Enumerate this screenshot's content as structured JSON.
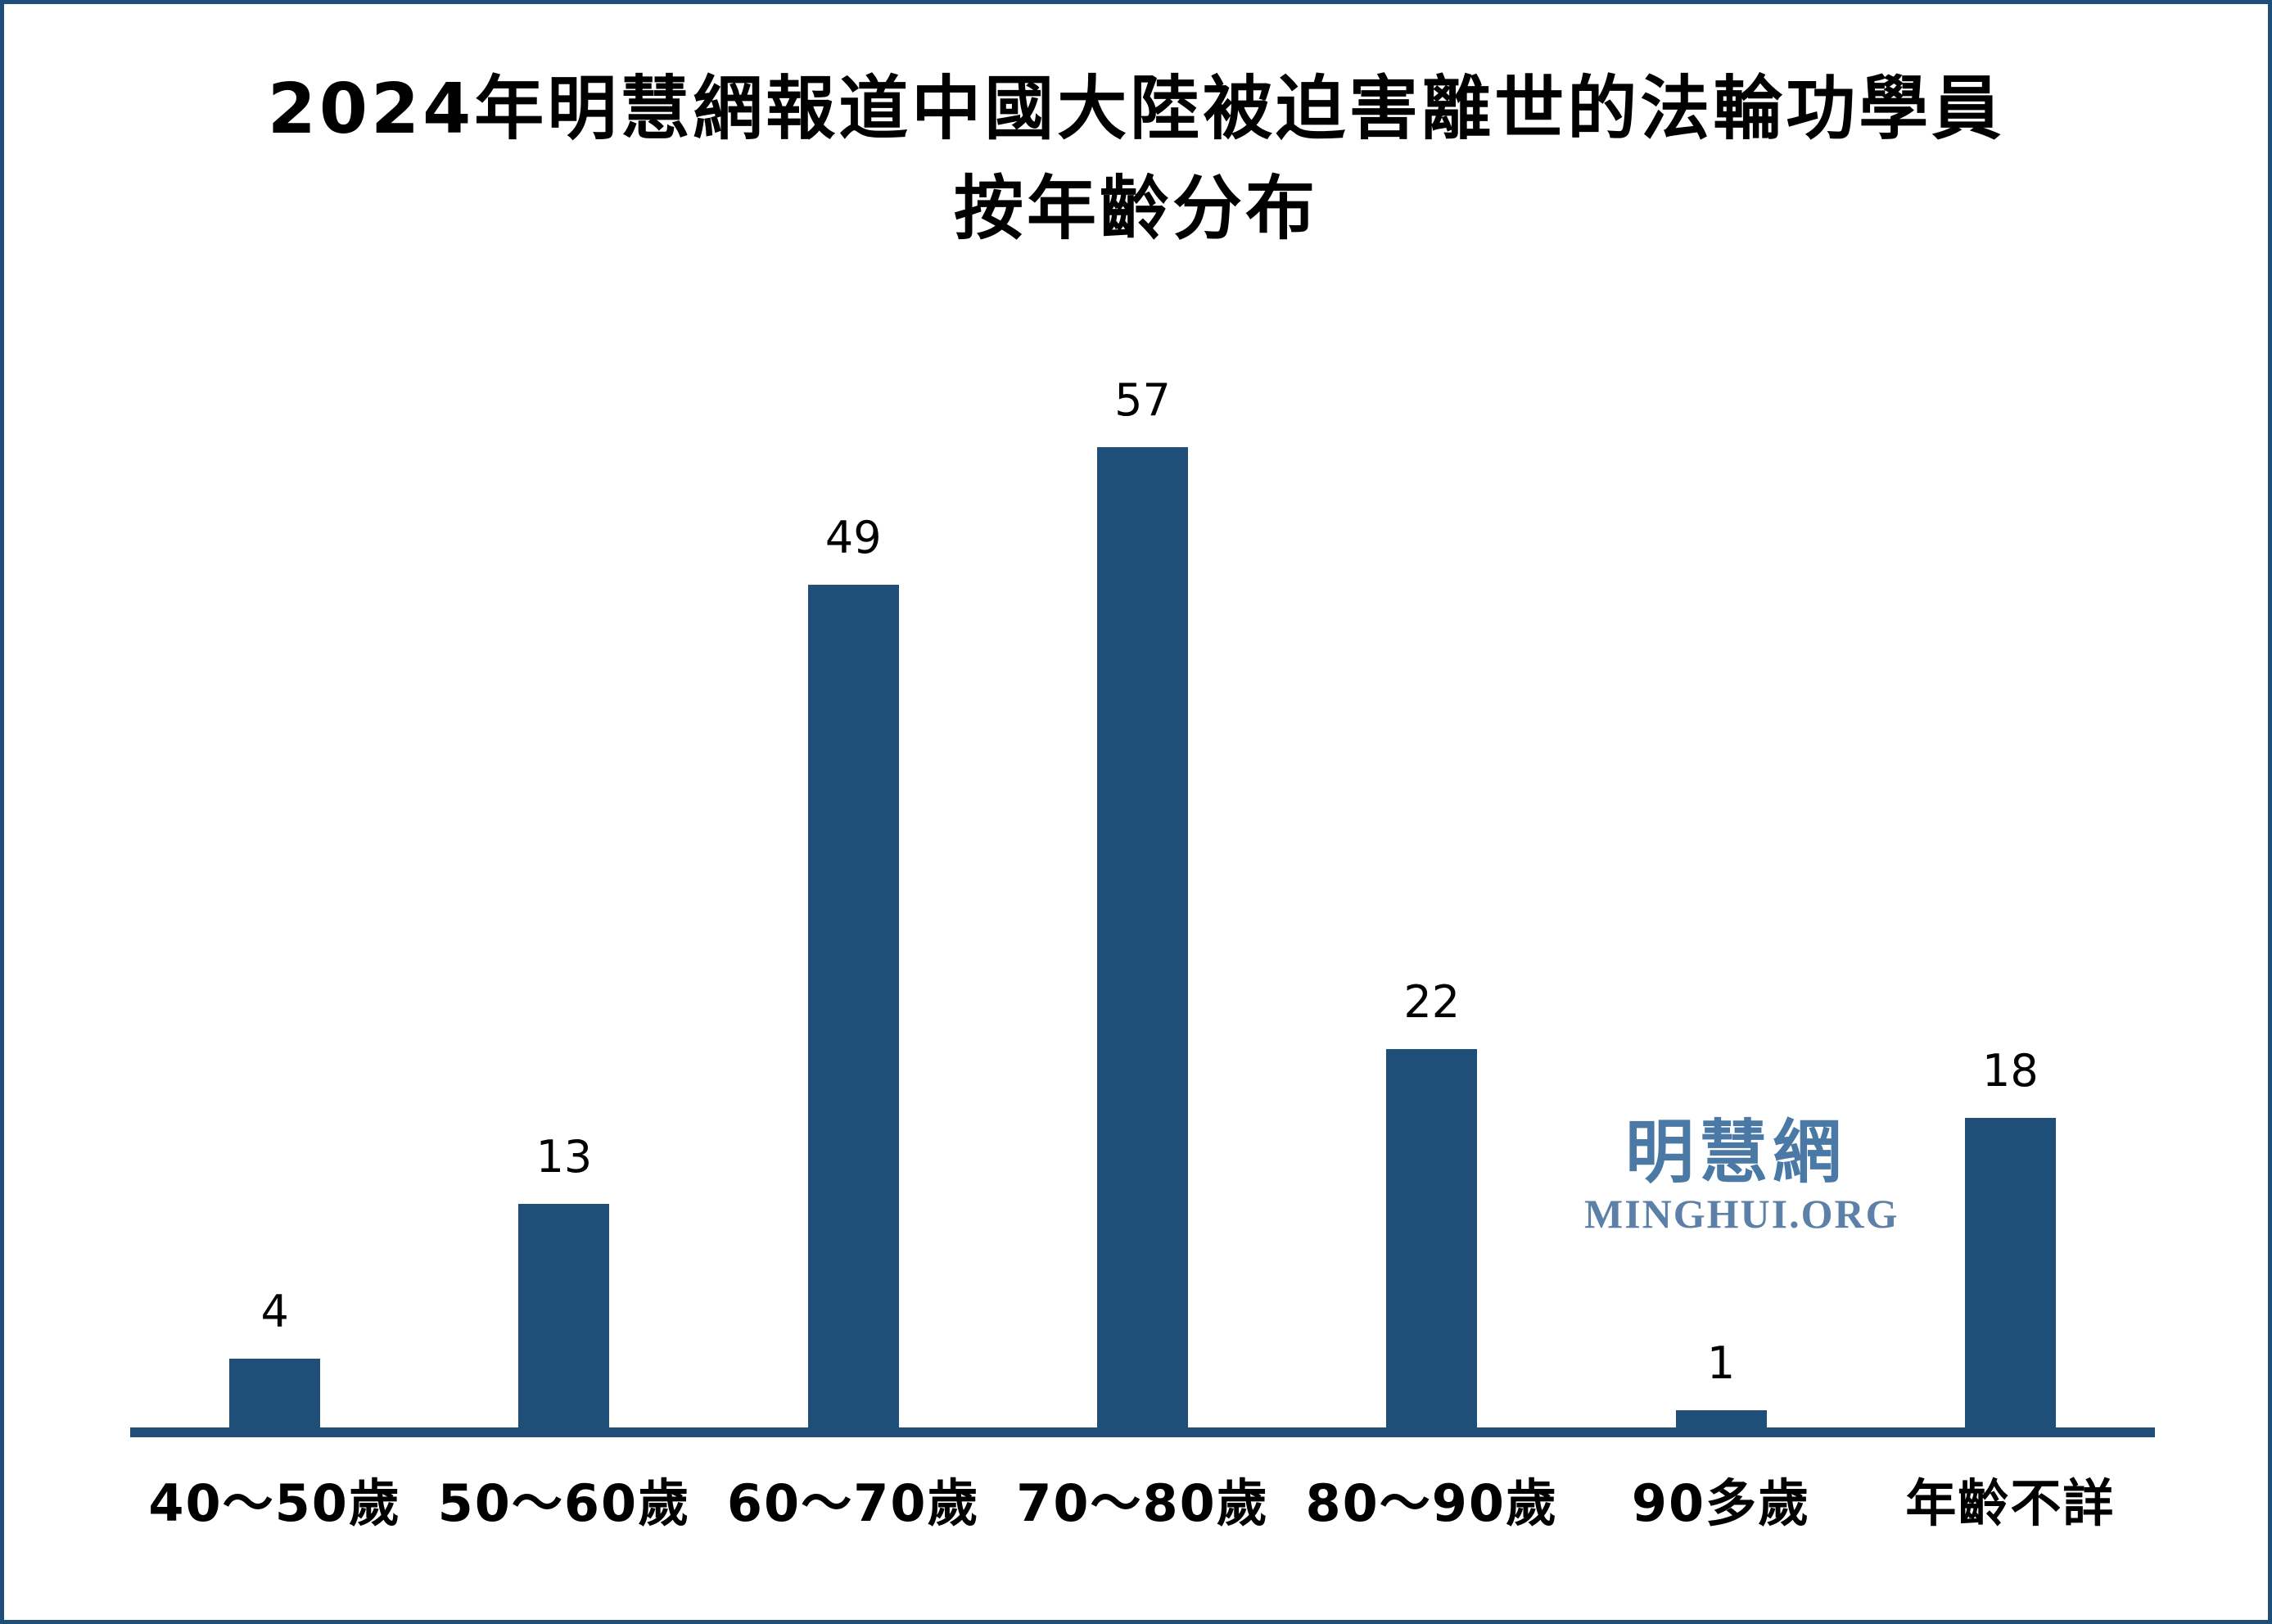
{
  "title": {
    "line1": "2024年明慧網報道中國大陸被迫害離世的法輪功學員",
    "line2": "按年齡分布"
  },
  "watermark": {
    "cjk": "明慧網",
    "latin": "MINGHUI.ORG",
    "cjk_color": "#4a79a5",
    "latin_color": "#5d80a8"
  },
  "colors": {
    "bar": "#1f4e79",
    "axis": "#1f4e79",
    "frame_border": "#1f4e79",
    "background": "#ffffff",
    "label_text": "#000000"
  },
  "chart_data": {
    "type": "bar",
    "title": "2024年明慧網報道中國大陸被迫害離世的法輪功學員 按年齡分布",
    "categories": [
      "40～50歲",
      "50～60歲",
      "60～70歲",
      "70～80歲",
      "80～90歲",
      "90多歲",
      "年齡不詳"
    ],
    "values": [
      4,
      13,
      49,
      57,
      22,
      1,
      18
    ],
    "xlabel": "",
    "ylabel": "",
    "ylim": [
      0,
      60
    ],
    "grid": false,
    "legend_position": "none",
    "data_labels_shown": true,
    "bar_color": "#1f4e79"
  }
}
